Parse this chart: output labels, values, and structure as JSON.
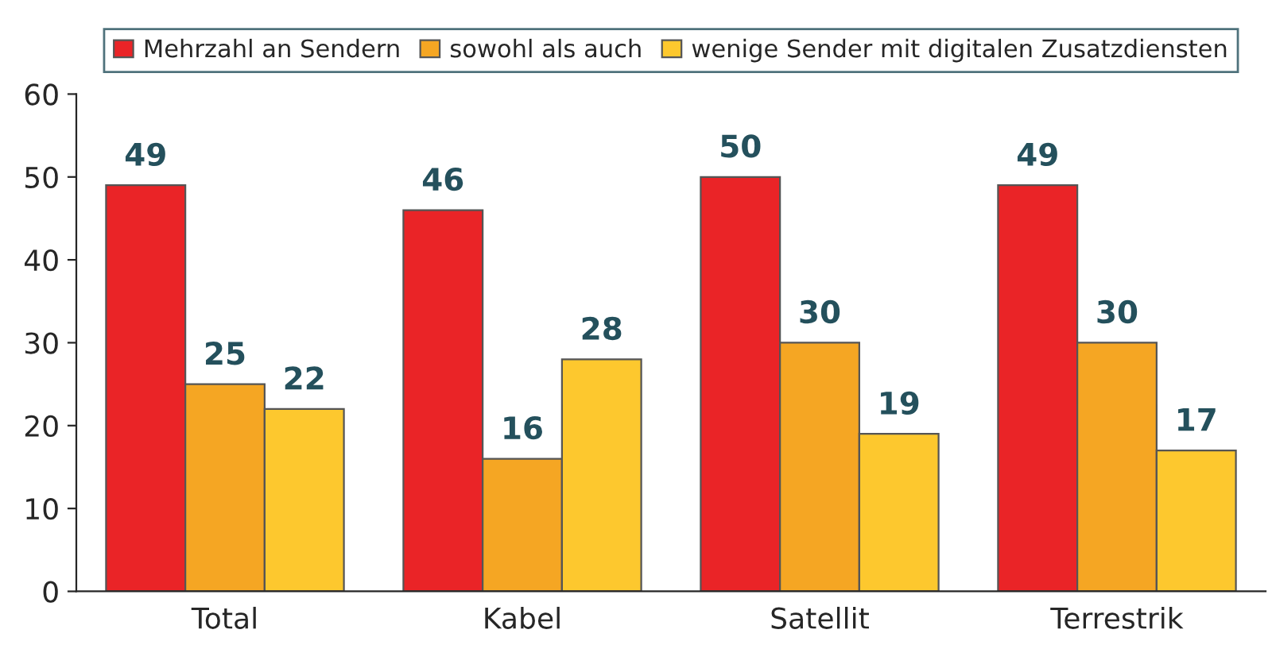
{
  "chart_data": {
    "type": "bar",
    "categories": [
      "Total",
      "Kabel",
      "Satellit",
      "Terrestrik"
    ],
    "series": [
      {
        "name": "Mehrzahl an Sendern",
        "color": "#ea2427",
        "values": [
          49,
          46,
          50,
          49
        ]
      },
      {
        "name": "sowohl als auch",
        "color": "#f5a623",
        "values": [
          25,
          16,
          30,
          30
        ]
      },
      {
        "name": "wenige Sender mit digitalen Zusatzdiensten",
        "color": "#fdc82e",
        "values": [
          22,
          28,
          19,
          17
        ]
      }
    ],
    "ylim": [
      0,
      60
    ],
    "yticks": [
      0,
      10,
      20,
      30,
      40,
      50,
      60
    ],
    "data_labels": true,
    "legend": "top",
    "grid": false
  }
}
